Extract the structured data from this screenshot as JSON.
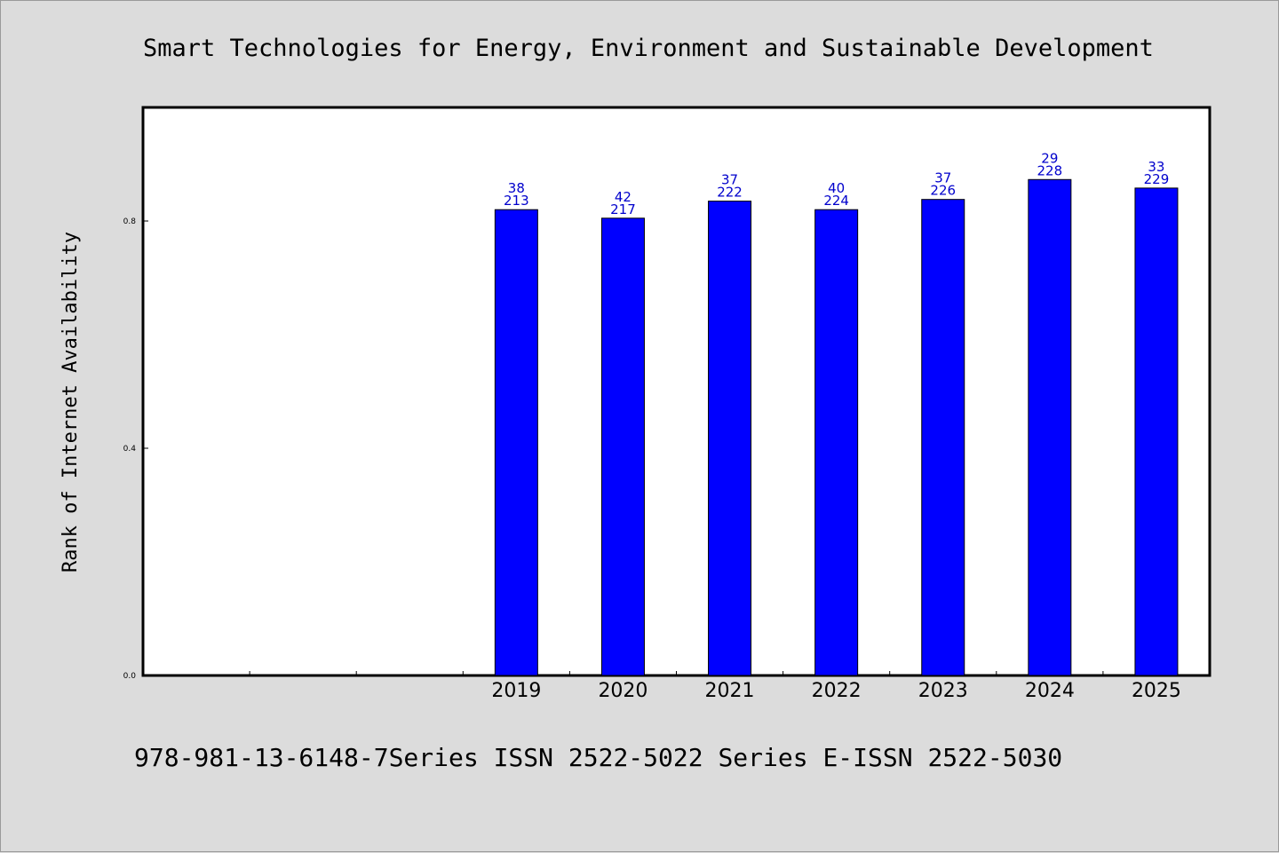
{
  "chart_data": {
    "type": "bar",
    "title": "Smart Technologies for Energy, Environment and Sustainable Development",
    "ylabel": "Rank of Internet Availability",
    "xlabel": "",
    "footer": "978-981-13-6148-7Series ISSN 2522-5022 Series E-ISSN 2522-5030",
    "ylim": [
      0,
      1.0
    ],
    "yticks": [
      "0.0",
      "0.4",
      "0.8"
    ],
    "ytick_values": [
      0.0,
      0.4,
      0.8
    ],
    "categories": [
      "",
      "",
      "",
      "2019",
      "2020",
      "2021",
      "2022",
      "2023",
      "2024",
      "2025"
    ],
    "values": [
      null,
      null,
      null,
      0.82,
      0.805,
      0.835,
      0.82,
      0.838,
      0.873,
      0.858
    ],
    "labels_top": [
      "",
      "",
      "",
      "38",
      "42",
      "37",
      "40",
      "37",
      "29",
      "33"
    ],
    "labels_bottom": [
      "",
      "",
      "",
      "213",
      "217",
      "222",
      "224",
      "226",
      "228",
      "229"
    ],
    "grid": false,
    "legend": "none",
    "colors": {
      "bar": "#0000ff",
      "bar_outline": "#000000",
      "data_label": "#0000cc",
      "background": "#dcdcdc",
      "plot_background": "#ffffff"
    }
  }
}
